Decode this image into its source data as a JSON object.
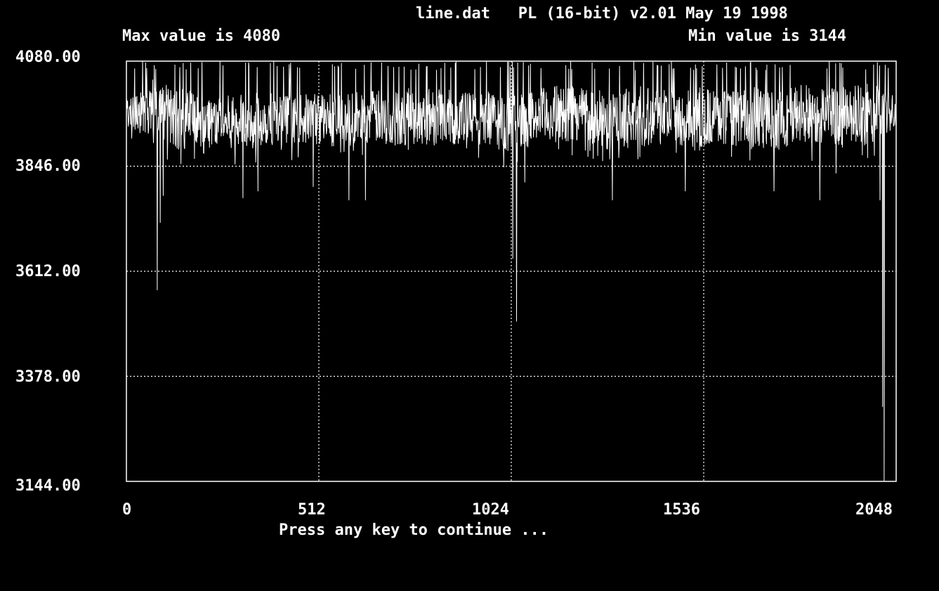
{
  "header": {
    "file_info": "line.dat   PL (16-bit) v2.01 May 19 1998",
    "max_text": "Max value is 4080",
    "min_text": "Min value is 3144"
  },
  "footer": {
    "prompt": "Press any key to continue ..."
  },
  "colors": {
    "background": "#000000",
    "foreground": "#ffffff"
  },
  "chart_data": {
    "type": "line",
    "title": "",
    "xlabel": "",
    "ylabel": "",
    "xlim": [
      0,
      2048
    ],
    "ylim": [
      3144,
      4080
    ],
    "x_ticks": [
      "0",
      "512",
      "1024",
      "1536",
      "2048"
    ],
    "x_tick_values": [
      0,
      512,
      1024,
      1536,
      2048
    ],
    "y_ticks": [
      "4080.00",
      "3846.00",
      "3612.00",
      "3378.00",
      "3144.00"
    ],
    "y_tick_values": [
      4080,
      3846,
      3612,
      3378,
      3144
    ],
    "grid": "dotted",
    "legend": "none",
    "max_value": 4080,
    "min_value": 3144,
    "samples": 2048,
    "band_estimate": [
      [
        0,
        4000,
        3930
      ],
      [
        64,
        4040,
        3925
      ],
      [
        128,
        4020,
        3885
      ],
      [
        192,
        4010,
        3890
      ],
      [
        256,
        4000,
        3890
      ],
      [
        320,
        4005,
        3885
      ],
      [
        384,
        4010,
        3895
      ],
      [
        448,
        4000,
        3900
      ],
      [
        512,
        4010,
        3895
      ],
      [
        576,
        4005,
        3890
      ],
      [
        640,
        4015,
        3900
      ],
      [
        704,
        4010,
        3895
      ],
      [
        768,
        4020,
        3895
      ],
      [
        832,
        4020,
        3900
      ],
      [
        896,
        4010,
        3890
      ],
      [
        960,
        4010,
        3890
      ],
      [
        1024,
        4000,
        3880
      ],
      [
        1088,
        4015,
        3900
      ],
      [
        1152,
        4025,
        3900
      ],
      [
        1216,
        4030,
        3905
      ],
      [
        1280,
        4005,
        3885
      ],
      [
        1344,
        4020,
        3890
      ],
      [
        1408,
        4030,
        3895
      ],
      [
        1472,
        4010,
        3895
      ],
      [
        1536,
        4020,
        3890
      ],
      [
        1600,
        4010,
        3895
      ],
      [
        1664,
        4020,
        3890
      ],
      [
        1728,
        4010,
        3885
      ],
      [
        1792,
        4030,
        3895
      ],
      [
        1856,
        4020,
        3900
      ],
      [
        1920,
        4020,
        3885
      ],
      [
        1984,
        4030,
        3900
      ],
      [
        2048,
        4000,
        3930
      ]
    ],
    "spikes": [
      [
        82,
        3570
      ],
      [
        90,
        3720
      ],
      [
        98,
        3780
      ],
      [
        310,
        3775
      ],
      [
        350,
        3790
      ],
      [
        497,
        3800
      ],
      [
        592,
        3770
      ],
      [
        636,
        3770
      ],
      [
        1015,
        3880
      ],
      [
        1028,
        3640
      ],
      [
        1038,
        3500
      ],
      [
        1060,
        3810
      ],
      [
        1293,
        3770
      ],
      [
        1487,
        3790
      ],
      [
        1723,
        3790
      ],
      [
        1845,
        3770
      ],
      [
        1888,
        3830
      ],
      [
        2005,
        3770
      ],
      [
        2012,
        3310
      ],
      [
        2016,
        3144
      ]
    ]
  }
}
